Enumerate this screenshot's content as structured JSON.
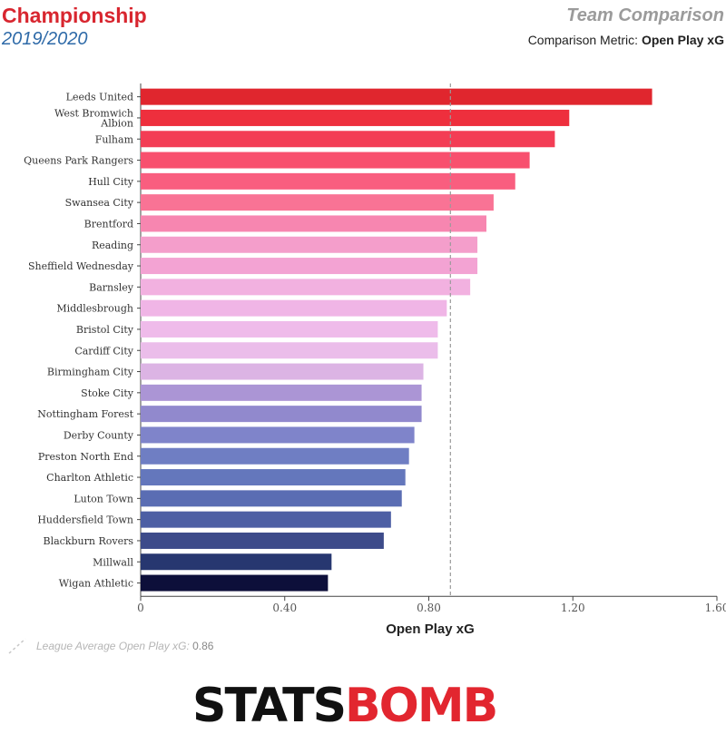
{
  "header": {
    "title": "Championship",
    "season": "2019/2020",
    "right_title": "Team Comparison",
    "metric_label": "Comparison Metric:",
    "metric_value": "Open Play xG"
  },
  "legend": {
    "label": "League Average Open Play xG:",
    "value": "0.86"
  },
  "logo": {
    "part1": "STATS",
    "part2": "BOMB"
  },
  "chart_data": {
    "type": "bar",
    "orientation": "horizontal",
    "xlabel": "Open Play xG",
    "xlim": [
      0,
      1.6
    ],
    "xticks": [
      0,
      0.4,
      0.8,
      1.2,
      1.6
    ],
    "xtick_labels": [
      "0",
      "0.40",
      "0.80",
      "1.20",
      "1.60"
    ],
    "reference_line": 0.86,
    "categories": [
      "Leeds United",
      "West Bromwich Albion",
      "Fulham",
      "Queens Park Rangers",
      "Hull City",
      "Swansea City",
      "Brentford",
      "Reading",
      "Sheffield Wednesday",
      "Barnsley",
      "Middlesbrough",
      "Bristol City",
      "Cardiff City",
      "Birmingham City",
      "Stoke City",
      "Nottingham Forest",
      "Derby County",
      "Preston North End",
      "Charlton Athletic",
      "Luton Town",
      "Huddersfield Town",
      "Blackburn Rovers",
      "Millwall",
      "Wigan Athletic"
    ],
    "values": [
      1.42,
      1.19,
      1.15,
      1.08,
      1.04,
      0.98,
      0.96,
      0.935,
      0.935,
      0.915,
      0.85,
      0.825,
      0.825,
      0.785,
      0.78,
      0.78,
      0.76,
      0.745,
      0.735,
      0.725,
      0.695,
      0.675,
      0.53,
      0.52
    ],
    "colors": [
      "#e0262e",
      "#ee2f3d",
      "#f33d55",
      "#f8506e",
      "#f95e7f",
      "#f97395",
      "#f786b0",
      "#f49ecb",
      "#f3a3d3",
      "#f2b1e0",
      "#f0b5e6",
      "#efbbea",
      "#ebbdea",
      "#dcb4e4",
      "#ab95d5",
      "#9189cd",
      "#7f84ca",
      "#6f7ec3",
      "#6477bc",
      "#5a6db3",
      "#4d5fa4",
      "#3d4b8a",
      "#273770",
      "#0d0f3a"
    ],
    "grid": false
  }
}
